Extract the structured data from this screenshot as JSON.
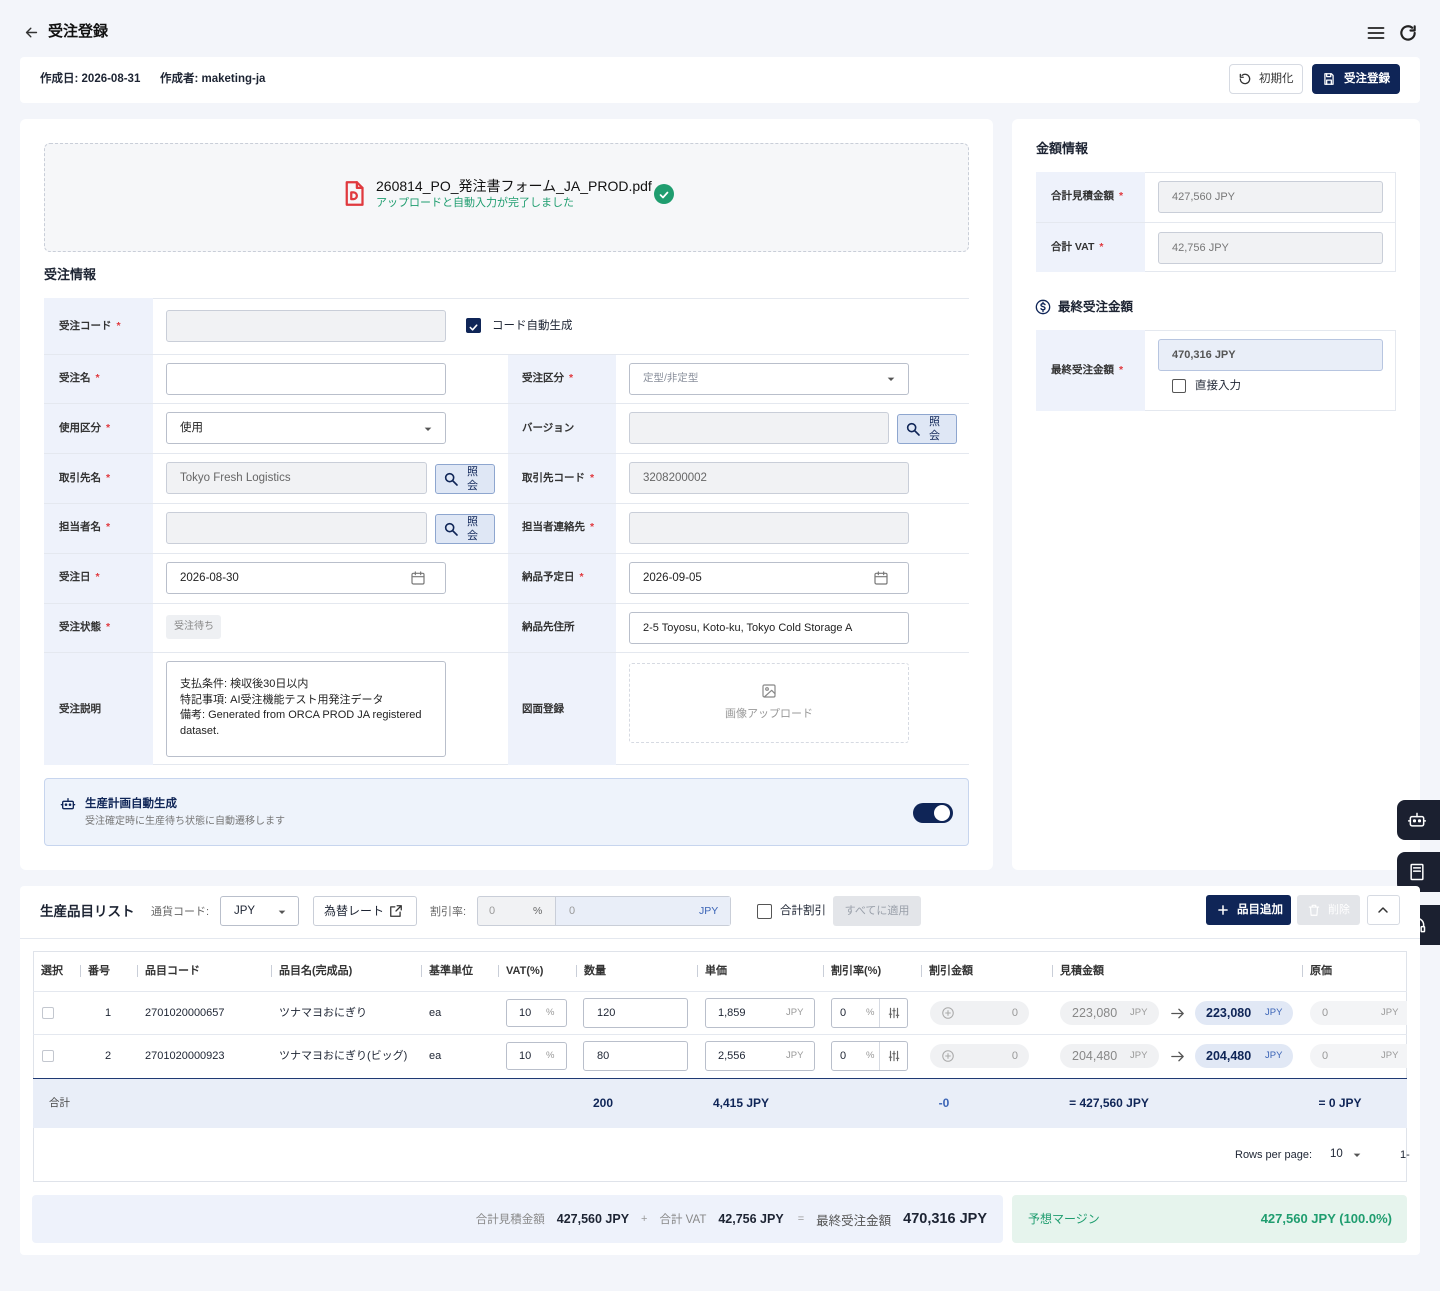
{
  "header": {
    "title": "受注登録"
  },
  "meta": {
    "created": "作成日: 2026-08-31",
    "author": "作成者: maketing-ja"
  },
  "actions": {
    "reset": "初期化",
    "submit": "受注登録"
  },
  "upload": {
    "file": "260814_PO_発注書フォーム_JA_PROD.pdf",
    "status": "アップロードと自動入力が完了しました"
  },
  "order": {
    "title": "受注情報",
    "required": "*",
    "auto_code": "コード自動生成",
    "lookup": "照会",
    "fields": [
      {
        "label": "受注コード"
      },
      {
        "label": "受注名"
      },
      {
        "label": "受注区分",
        "placeholder": "定型/非定型"
      },
      {
        "label": "使用区分",
        "value": "使用"
      },
      {
        "label": "バージョン"
      },
      {
        "label": "取引先名",
        "value": "Tokyo Fresh Logistics"
      },
      {
        "label": "取引先コード",
        "value": "3208200002"
      },
      {
        "label": "担当者名"
      },
      {
        "label": "担当者連絡先"
      },
      {
        "label": "受注日",
        "value": "2026-08-30"
      },
      {
        "label": "納品予定日",
        "value": "2026-09-05"
      },
      {
        "label": "受注状態",
        "value": "受注待ち"
      },
      {
        "label": "納品先住所",
        "value": "2-5 Toyosu, Koto-ku, Tokyo Cold Storage A"
      },
      {
        "label": "受注説明",
        "value": [
          "支払条件: 検収後30日以内",
          "特記事項: AI受注機能テスト用発注データ",
          "備考: Generated from ORCA PROD JA registered dataset."
        ]
      },
      {
        "label": "図面登録",
        "placeholder": "画像アップロード"
      }
    ]
  },
  "auto_plan": {
    "title": "生産計画自動生成",
    "description": "受注確定時に生産待ち状態に自動遷移します"
  },
  "amounts": {
    "title": "金額情報",
    "rows": [
      {
        "label": "合計見積金額",
        "value": "427,560 JPY"
      },
      {
        "label": "合計 VAT",
        "value": "42,756 JPY"
      }
    ],
    "final_title": "最終受注金額",
    "final": {
      "label": "最終受注金額",
      "value": "470,316 JPY",
      "manual": "直接入力"
    }
  },
  "items": {
    "title": "生産品目リスト",
    "currency_label": "通貨コード:",
    "currency": "JPY",
    "rate_button": "為替レート",
    "discount_label": "割引率:",
    "discount_rate": "0",
    "percent": "%",
    "discount_amount": "0",
    "jpy": "JPY",
    "total_discount": "合計割引",
    "apply_all": "すべてに適用",
    "add": "品目追加",
    "delete": "削除",
    "columns": [
      "選択",
      "番号",
      "品目コード",
      "品目名(完成品)",
      "基準単位",
      "VAT(%)",
      "数量",
      "単価",
      "割引率(%)",
      "割引金額",
      "見積金額",
      "原価"
    ],
    "rows": [
      {
        "no": "1",
        "code": "2701020000657",
        "name": "ツナマヨおにぎり",
        "unit": "ea",
        "vat": "10",
        "qty": "120",
        "price": "1,859",
        "rate": "0",
        "discount": "0",
        "estimate": "223,080",
        "final": "223,080",
        "cost": "0"
      },
      {
        "no": "2",
        "code": "2701020000923",
        "name": "ツナマヨおにぎり(ビッグ)",
        "unit": "ea",
        "vat": "10",
        "qty": "80",
        "price": "2,556",
        "rate": "0",
        "discount": "0",
        "estimate": "204,480",
        "final": "204,480",
        "cost": "0"
      }
    ],
    "total": {
      "label": "合計",
      "qty": "200",
      "price": "4,415 JPY",
      "discount": "-0",
      "estimate": "= 427,560 JPY",
      "cost": "= 0 JPY"
    },
    "rows_per_page_label": "Rows per page:",
    "rows_per_page": "10",
    "range": "1-"
  },
  "summary": {
    "estimate_label": "合計見積金額",
    "estimate": "427,560 JPY",
    "plus": "+",
    "vat_label": "合計 VAT",
    "vat": "42,756 JPY",
    "equals": "=",
    "final_label": "最終受注金額",
    "final": "470,316 JPY",
    "margin_label": "予想マージン",
    "margin": "427,560 JPY (100.0%)"
  }
}
